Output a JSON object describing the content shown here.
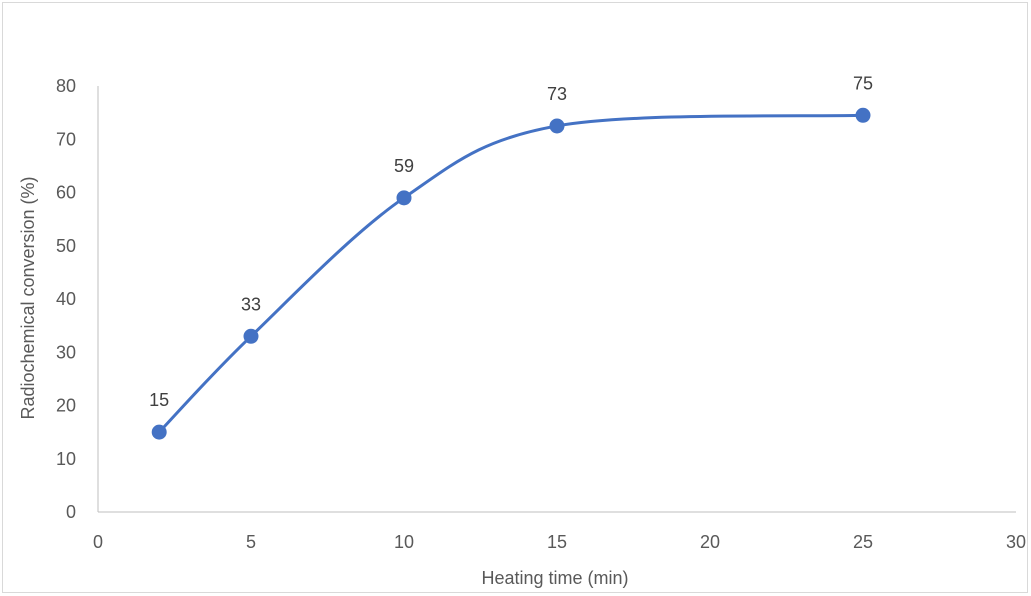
{
  "chart_data": {
    "type": "scatter",
    "title": "",
    "xlabel": "Heating time (min)",
    "ylabel": "Radiochemical conversion (%)",
    "xlim": [
      0,
      30
    ],
    "ylim": [
      0,
      80
    ],
    "xticks": [
      0,
      5,
      10,
      15,
      20,
      25,
      30
    ],
    "yticks": [
      0,
      10,
      20,
      30,
      40,
      50,
      60,
      70,
      80
    ],
    "grid": false,
    "smooth_line": true,
    "series": [
      {
        "x": [
          2,
          5,
          10,
          15,
          25
        ],
        "y": [
          15,
          33,
          59,
          72.5,
          74.5
        ],
        "labels": [
          "15",
          "33",
          "59",
          "73",
          "75"
        ],
        "color": "#4472c4"
      }
    ]
  }
}
